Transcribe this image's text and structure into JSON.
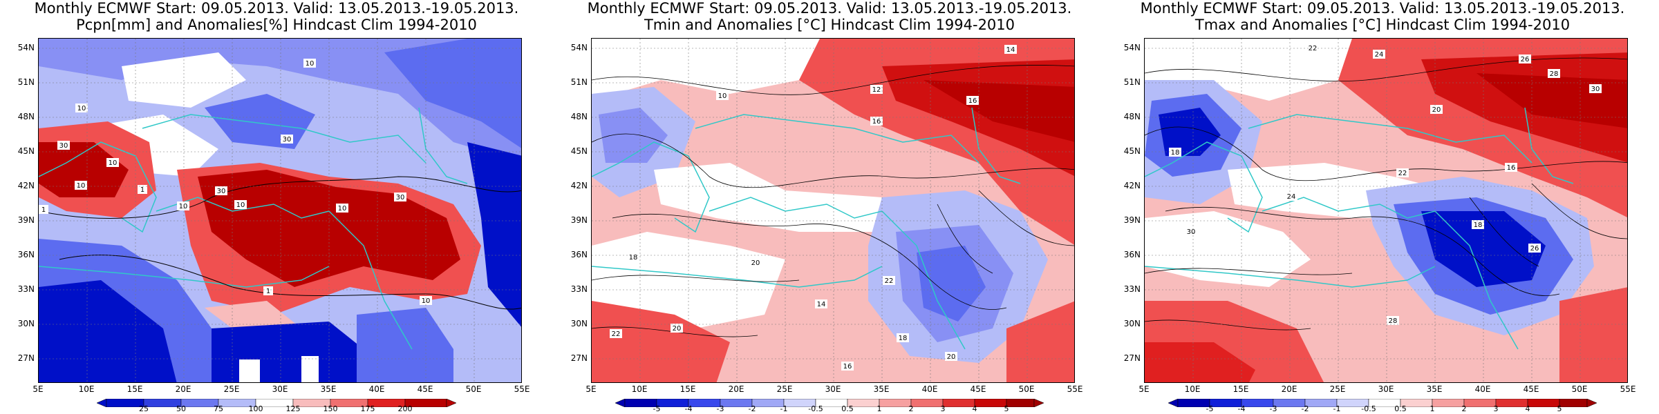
{
  "colors": {
    "dry_deep": "#0010c8",
    "dry_mid": "#5c6cf0",
    "dry_light": "#b4bcf8",
    "neutral": "#ffffff",
    "wet_light": "#f8bcbc",
    "wet_mid": "#f05050",
    "wet_deep": "#b80000",
    "coast": "#30c8c8",
    "contour": "#000000"
  },
  "panels": [
    {
      "title_line1": "Monthly ECMWF Start: 09.05.2013. Valid: 13.05.2013.-19.05.2013.",
      "title_line2": "Pcpn[mm] and Anomalies[%] Hindcast Clim 1994-2010",
      "y_ticks": [
        "54N",
        "51N",
        "48N",
        "45N",
        "42N",
        "39N",
        "36N",
        "33N",
        "30N",
        "27N"
      ],
      "x_ticks": [
        "5E",
        "10E",
        "15E",
        "20E",
        "25E",
        "30E",
        "35E",
        "40E",
        "45E",
        "50E",
        "55E"
      ],
      "colorbar": [
        "25",
        "50",
        "75",
        "100",
        "125",
        "150",
        "175",
        "200"
      ],
      "contour_labels": [
        "10",
        "10",
        "30",
        "30",
        "10",
        "1",
        "10",
        "30",
        "10",
        "10",
        "1",
        "1",
        "30",
        "10",
        "10"
      ]
    },
    {
      "title_line1": "Monthly ECMWF Start: 09.05.2013. Valid: 13.05.2013.-19.05.2013.",
      "title_line2": "Tmin and Anomalies [°C] Hindcast Clim 1994-2010",
      "y_ticks": [
        "54N",
        "51N",
        "48N",
        "45N",
        "42N",
        "39N",
        "36N",
        "33N",
        "30N",
        "27N"
      ],
      "x_ticks": [
        "5E",
        "10E",
        "15E",
        "20E",
        "25E",
        "30E",
        "35E",
        "40E",
        "45E",
        "50E",
        "55E"
      ],
      "colorbar": [
        "-5",
        "-4",
        "-3",
        "-2",
        "-1",
        "-0.5",
        "0.5",
        "1",
        "2",
        "3",
        "4",
        "5"
      ],
      "contour_labels": [
        "12",
        "14",
        "16",
        "16",
        "10",
        "18",
        "20",
        "20",
        "14",
        "22",
        "18",
        "16",
        "20",
        "22"
      ]
    },
    {
      "title_line1": "Monthly ECMWF Start: 09.05.2013. Valid: 13.05.2013.-19.05.2013.",
      "title_line2": "Tmax and Anomalies [°C] Hindcast Clim 1994-2010",
      "y_ticks": [
        "54N",
        "51N",
        "48N",
        "45N",
        "42N",
        "39N",
        "36N",
        "33N",
        "30N",
        "27N"
      ],
      "x_ticks": [
        "5E",
        "10E",
        "15E",
        "20E",
        "25E",
        "30E",
        "35E",
        "40E",
        "45E",
        "50E",
        "55E"
      ],
      "colorbar": [
        "-5",
        "-4",
        "-3",
        "-2",
        "-1",
        "-0.5",
        "0.5",
        "1",
        "2",
        "3",
        "4",
        "5"
      ],
      "contour_labels": [
        "20",
        "22",
        "24",
        "26",
        "28",
        "30",
        "18",
        "16",
        "22",
        "24",
        "26",
        "28",
        "30",
        "18"
      ]
    }
  ]
}
